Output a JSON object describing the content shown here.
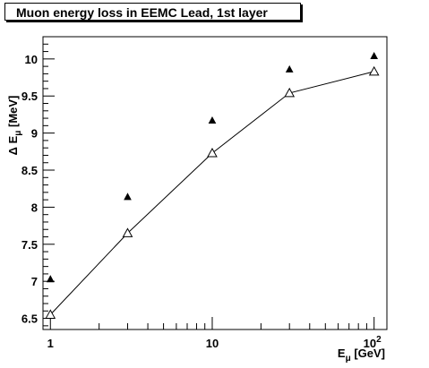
{
  "chart_data": {
    "type": "scatter",
    "title": "Muon energy loss in EEMC Lead, 1st layer",
    "xlabel": {
      "main": "E",
      "sub": "μ",
      "unit": " [GeV]"
    },
    "ylabel": {
      "prefix": "Δ E",
      "sub": "μ",
      "unit": " [MeV]"
    },
    "xscale": "log",
    "xlim": [
      0.9,
      120
    ],
    "ylim": [
      6.35,
      10.3
    ],
    "grid": false,
    "x_ticks": [
      {
        "value": 1,
        "label": "1"
      },
      {
        "value": 10,
        "label": "10"
      }
    ],
    "x_tick_100": {
      "value": 100,
      "base": "10",
      "exp": "2"
    },
    "y_ticks": [
      {
        "value": 6.5,
        "label": "6.5"
      },
      {
        "value": 7,
        "label": "7"
      },
      {
        "value": 7.5,
        "label": "7.5"
      },
      {
        "value": 8,
        "label": "8"
      },
      {
        "value": 8.5,
        "label": "8.5"
      },
      {
        "value": 9,
        "label": "9"
      },
      {
        "value": 9.5,
        "label": "9.5"
      },
      {
        "value": 10,
        "label": "10"
      }
    ],
    "series": [
      {
        "marker": "filled-triangle",
        "line": false,
        "color": "#000000",
        "x": [
          1,
          3,
          10,
          30,
          100
        ],
        "y": [
          7.03,
          8.14,
          9.17,
          9.86,
          10.04
        ]
      },
      {
        "marker": "open-triangle",
        "line": true,
        "color": "#000000",
        "x": [
          1,
          3,
          10,
          30,
          100
        ],
        "y": [
          6.55,
          7.65,
          8.73,
          9.54,
          9.83
        ]
      }
    ]
  }
}
